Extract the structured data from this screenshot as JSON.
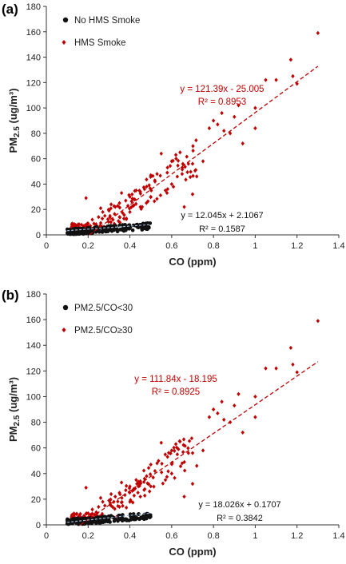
{
  "chart_data": [
    {
      "type": "scatter",
      "panel_label": "(a)",
      "title": "",
      "xlabel": "CO (ppm)",
      "ylabel_main": "PM",
      "ylabel_sub": "2.5",
      "ylabel_unit": " (ug/m³)",
      "xlim": [
        0,
        1.4
      ],
      "ylim": [
        0,
        180
      ],
      "x_ticks": [
        "0",
        "0.2",
        "0.4",
        "0.6",
        "0.8",
        "1",
        "1.2",
        "1.4"
      ],
      "y_ticks": [
        "0",
        "20",
        "40",
        "60",
        "80",
        "100",
        "120",
        "140",
        "160",
        "180"
      ],
      "grid": false,
      "legend_position": "top-left",
      "colors": {
        "black": "#111111",
        "red": "#c00000"
      },
      "series": [
        {
          "name": "No HMS Smoke",
          "color": "#111111",
          "marker": "circle",
          "trend": {
            "slope": 12.045,
            "intercept": 2.1067,
            "eq": "y = 12.045x + 2.1067",
            "r2": "R² = 0.1587",
            "color": "#111111"
          }
        },
        {
          "name": "HMS Smoke",
          "color": "#c00000",
          "marker": "diamond",
          "trend": {
            "slope": 121.39,
            "intercept": -25.005,
            "eq": "y = 121.39x - 25.005",
            "r2": "R² = 0.8953",
            "color": "#c00000"
          }
        }
      ]
    },
    {
      "type": "scatter",
      "panel_label": "(b)",
      "title": "",
      "xlabel": "CO (ppm)",
      "ylabel_main": "PM",
      "ylabel_sub": "2.5",
      "ylabel_unit": " (ug/m³)",
      "xlim": [
        0,
        1.4
      ],
      "ylim": [
        0,
        180
      ],
      "x_ticks": [
        "0",
        "0.2",
        "0.4",
        "0.6",
        "0.8",
        "1",
        "1.2",
        "1.4"
      ],
      "y_ticks": [
        "0",
        "20",
        "40",
        "60",
        "80",
        "100",
        "120",
        "140",
        "160",
        "180"
      ],
      "grid": false,
      "legend_position": "top-left",
      "colors": {
        "black": "#111111",
        "red": "#c00000"
      },
      "series": [
        {
          "name": "PM2.5/CO<30",
          "color": "#111111",
          "marker": "circle",
          "trend": {
            "slope": 18.026,
            "intercept": 0.1707,
            "eq": "y = 18.026x + 0.1707",
            "r2": "R² = 0.3842",
            "color": "#111111"
          }
        },
        {
          "name": "PM2.5/CO≥30",
          "color": "#c00000",
          "marker": "diamond",
          "trend": {
            "slope": 111.84,
            "intercept": -18.195,
            "eq": "y = 111.84x - 18.195",
            "r2": "R² = 0.8925",
            "color": "#c00000"
          }
        }
      ]
    }
  ]
}
